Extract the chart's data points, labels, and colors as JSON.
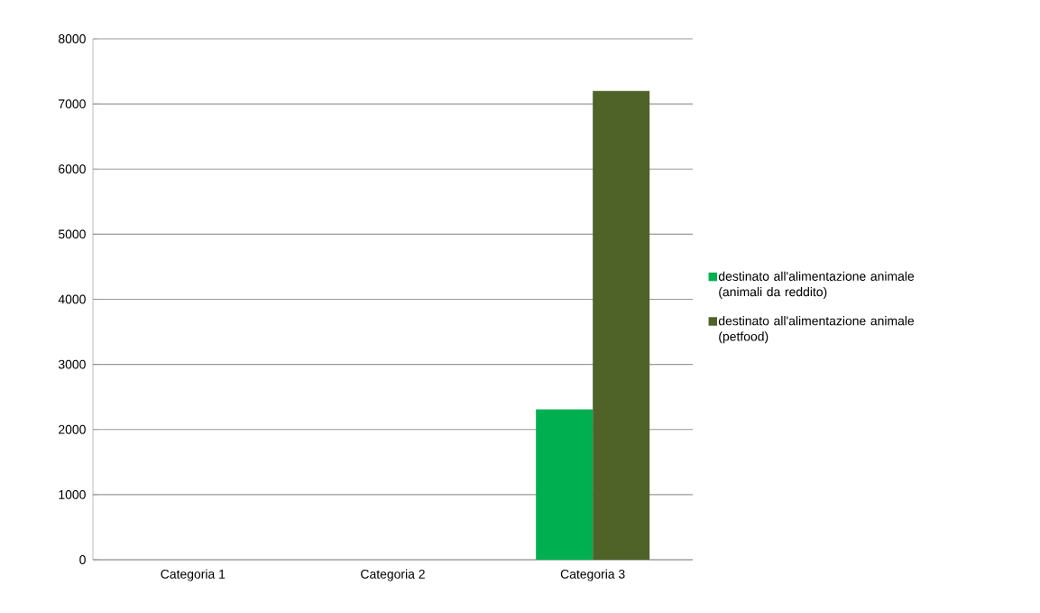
{
  "chart_data": {
    "type": "bar",
    "categories": [
      "Categoria 1",
      "Categoria 2",
      "Categoria 3"
    ],
    "series": [
      {
        "name": "destinato all'alimentazione animale (animali da reddito)",
        "color": "#00b050",
        "values": [
          null,
          null,
          2310
        ]
      },
      {
        "name": "destinato all'alimentazione animale (petfood)",
        "color": "#4f6228",
        "values": [
          null,
          null,
          7200
        ]
      }
    ],
    "ylim": [
      0,
      8000
    ],
    "yticks": [
      0,
      1000,
      2000,
      3000,
      4000,
      5000,
      6000,
      7000,
      8000
    ],
    "grid": "y",
    "legend": "right"
  }
}
